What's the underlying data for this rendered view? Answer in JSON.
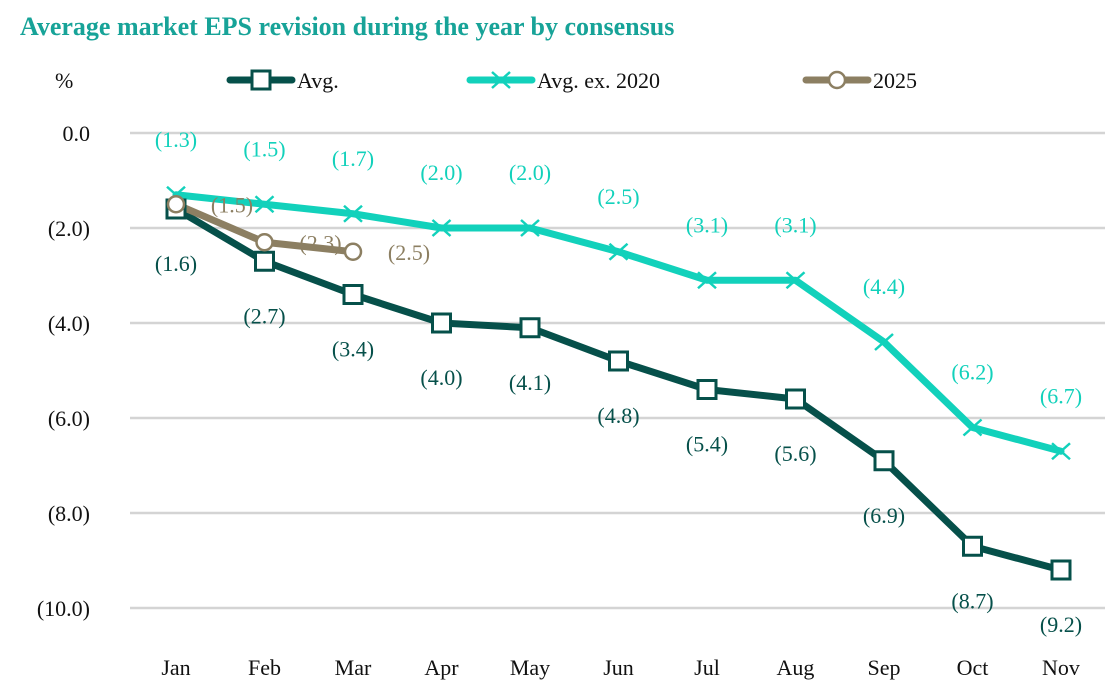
{
  "chart_data": {
    "type": "line",
    "title": "Average market EPS revision during the year by consensus",
    "ylabel": "%",
    "xlabel": "",
    "categories": [
      "Jan",
      "Feb",
      "Mar",
      "Apr",
      "May",
      "Jun",
      "Jul",
      "Aug",
      "Sep",
      "Oct",
      "Nov"
    ],
    "ylim": [
      -10,
      0
    ],
    "yticks": [
      0,
      -2,
      -4,
      -6,
      -8,
      -10
    ],
    "ytick_labels": [
      "0.0",
      "(2.0)",
      "(4.0)",
      "(6.0)",
      "(8.0)",
      "(10.0)"
    ],
    "grid": true,
    "legend_position": "top",
    "series": [
      {
        "name": "Avg.",
        "color": "#06504a",
        "marker": "square",
        "values": [
          -1.6,
          -2.7,
          -3.4,
          -4.0,
          -4.1,
          -4.8,
          -5.4,
          -5.6,
          -6.9,
          -8.7,
          -9.2
        ],
        "labels": [
          "(1.6)",
          "(2.7)",
          "(3.4)",
          "(4.0)",
          "(4.1)",
          "(4.8)",
          "(5.4)",
          "(5.6)",
          "(6.9)",
          "(8.7)",
          "(9.2)"
        ],
        "label_position": "below"
      },
      {
        "name": "Avg. ex. 2020",
        "color": "#12d1bb",
        "marker": "x",
        "values": [
          -1.3,
          -1.5,
          -1.7,
          -2.0,
          -2.0,
          -2.5,
          -3.1,
          -3.1,
          -4.4,
          -6.2,
          -6.7
        ],
        "labels": [
          "(1.3)",
          "(1.5)",
          "(1.7)",
          "(2.0)",
          "(2.0)",
          "(2.5)",
          "(3.1)",
          "(3.1)",
          "(4.4)",
          "(6.2)",
          "(6.7)"
        ],
        "label_position": "above"
      },
      {
        "name": "2025",
        "color": "#8c7f62",
        "marker": "circle",
        "values": [
          -1.5,
          -2.3,
          -2.5
        ],
        "labels": [
          "(1.5)",
          "(2.3)",
          "(2.5)"
        ],
        "label_position": "right"
      }
    ]
  }
}
